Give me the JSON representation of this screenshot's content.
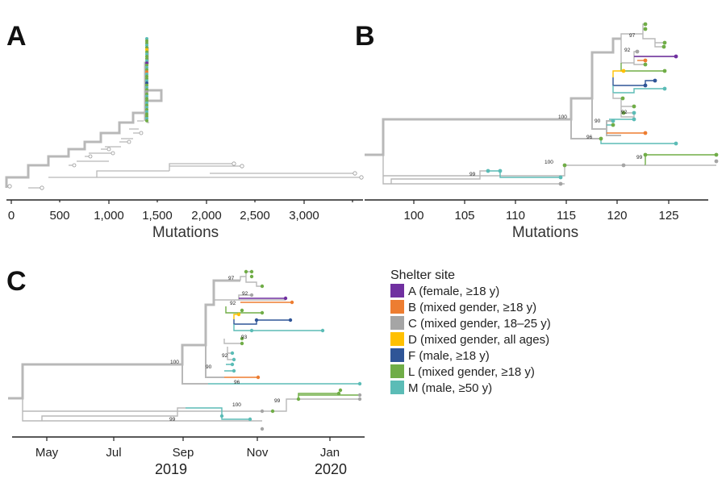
{
  "panels": {
    "A": {
      "letter": "A",
      "axis_title": "Mutations",
      "ticks": [
        "0",
        "500",
        "1,000",
        "1,500",
        "2,000",
        "2,500",
        "3,000"
      ]
    },
    "B": {
      "letter": "B",
      "axis_title": "Mutations",
      "ticks": [
        "100",
        "105",
        "110",
        "115",
        "120",
        "125"
      ]
    },
    "C": {
      "letter": "C",
      "month_ticks": [
        "May",
        "Jul",
        "Sep",
        "Nov",
        "Jan"
      ],
      "years": [
        "2019",
        "2020"
      ]
    }
  },
  "bootstrap_labels": [
    "100",
    "97",
    "92",
    "90",
    "92",
    "96",
    "99",
    "100",
    "99",
    "93"
  ],
  "legend": {
    "title": "Shelter site",
    "items": [
      {
        "label": "A (female, ≥18 y)",
        "color": "#7030a0"
      },
      {
        "label": "B (mixed gender, ≥18 y)",
        "color": "#ed7d31"
      },
      {
        "label": "C (mixed gender, 18–25 y)",
        "color": "#a5a5a5"
      },
      {
        "label": "D (mixed gender, all ages)",
        "color": "#ffc000"
      },
      {
        "label": "F (male, ≥18 y)",
        "color": "#2f5597"
      },
      {
        "label": "L (mixed gender, ≥18 y)",
        "color": "#70ad47"
      },
      {
        "label": "M (male, ≥50 y)",
        "color": "#5bbcb6"
      }
    ]
  },
  "colors": {
    "branch": "#b8b8b8",
    "axis": "#222222"
  }
}
